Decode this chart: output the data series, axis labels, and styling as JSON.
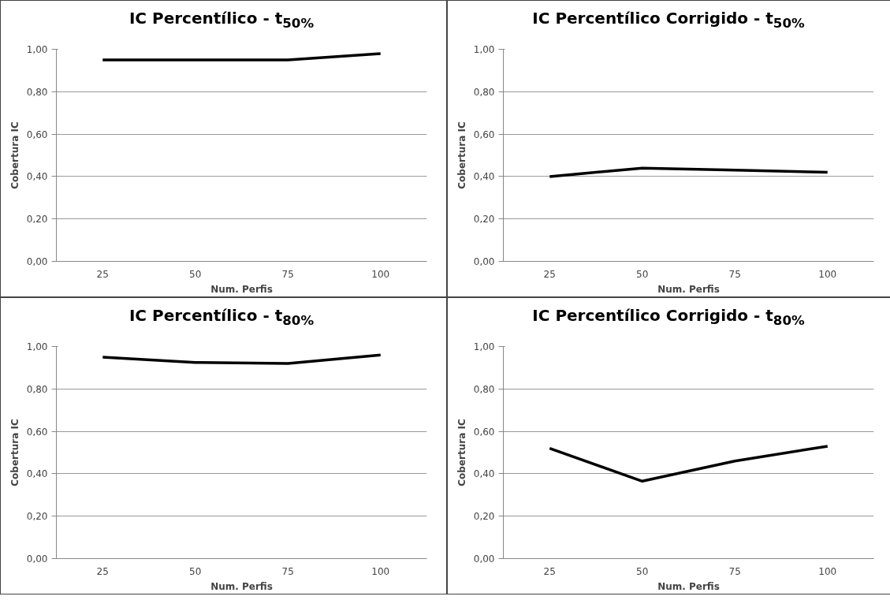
{
  "chart_data": [
    {
      "type": "line",
      "title": "IC Percentílico - t$_{50%}$",
      "xlabel": "Num. Perfis",
      "ylabel": "Cobertura IC",
      "categories": [
        "25",
        "50",
        "75",
        "100"
      ],
      "series": [
        {
          "color": "#000000",
          "values": [
            0.95,
            0.95,
            0.95,
            0.98
          ]
        }
      ],
      "ylim": [
        0,
        1
      ],
      "yticks": [
        {
          "value": 0,
          "label": "0,00"
        },
        {
          "value": 0.2,
          "label": "0,20"
        },
        {
          "value": 0.4,
          "label": "0,40"
        },
        {
          "value": 0.6,
          "label": "0,60"
        },
        {
          "value": 0.8,
          "label": "0,80"
        },
        {
          "value": 1,
          "label": "1,00"
        }
      ],
      "grid": "y"
    },
    {
      "type": "line",
      "title": "IC Percentílico Corrigido - t$_{50%}$",
      "xlabel": "Num. Perfis",
      "ylabel": "Cobertura IC",
      "categories": [
        "25",
        "50",
        "75",
        "100"
      ],
      "series": [
        {
          "color": "#000000",
          "values": [
            0.4,
            0.44,
            0.43,
            0.42
          ]
        }
      ],
      "ylim": [
        0,
        1
      ],
      "yticks": [
        {
          "value": 0,
          "label": "0,00"
        },
        {
          "value": 0.2,
          "label": "0,20"
        },
        {
          "value": 0.4,
          "label": "0,40"
        },
        {
          "value": 0.6,
          "label": "0,60"
        },
        {
          "value": 0.8,
          "label": "0,80"
        },
        {
          "value": 1,
          "label": "1,00"
        }
      ],
      "grid": "y"
    },
    {
      "type": "line",
      "title": "IC Percentílico - t$_{80%}$",
      "xlabel": "Num. Perfis",
      "ylabel": "Cobertura IC",
      "categories": [
        "25",
        "50",
        "75",
        "100"
      ],
      "series": [
        {
          "color": "#000000",
          "values": [
            0.95,
            0.925,
            0.92,
            0.96
          ]
        }
      ],
      "ylim": [
        0,
        1
      ],
      "yticks": [
        {
          "value": 0,
          "label": "0,00"
        },
        {
          "value": 0.2,
          "label": "0,20"
        },
        {
          "value": 0.4,
          "label": "0,40"
        },
        {
          "value": 0.6,
          "label": "0,60"
        },
        {
          "value": 0.8,
          "label": "0,80"
        },
        {
          "value": 1,
          "label": "1,00"
        }
      ],
      "grid": "y"
    },
    {
      "type": "line",
      "title": "IC Percentílico Corrigido - t$_{80%}$",
      "xlabel": "Num. Perfis",
      "ylabel": "Cobertura IC",
      "categories": [
        "25",
        "50",
        "75",
        "100"
      ],
      "series": [
        {
          "color": "#000000",
          "values": [
            0.52,
            0.365,
            0.46,
            0.53
          ]
        }
      ],
      "ylim": [
        0,
        1
      ],
      "yticks": [
        {
          "value": 0,
          "label": "0,00"
        },
        {
          "value": 0.2,
          "label": "0,20"
        },
        {
          "value": 0.4,
          "label": "0,40"
        },
        {
          "value": 0.6,
          "label": "0,60"
        },
        {
          "value": 0.8,
          "label": "0,80"
        },
        {
          "value": 1,
          "label": "1,00"
        }
      ],
      "grid": "y"
    }
  ]
}
